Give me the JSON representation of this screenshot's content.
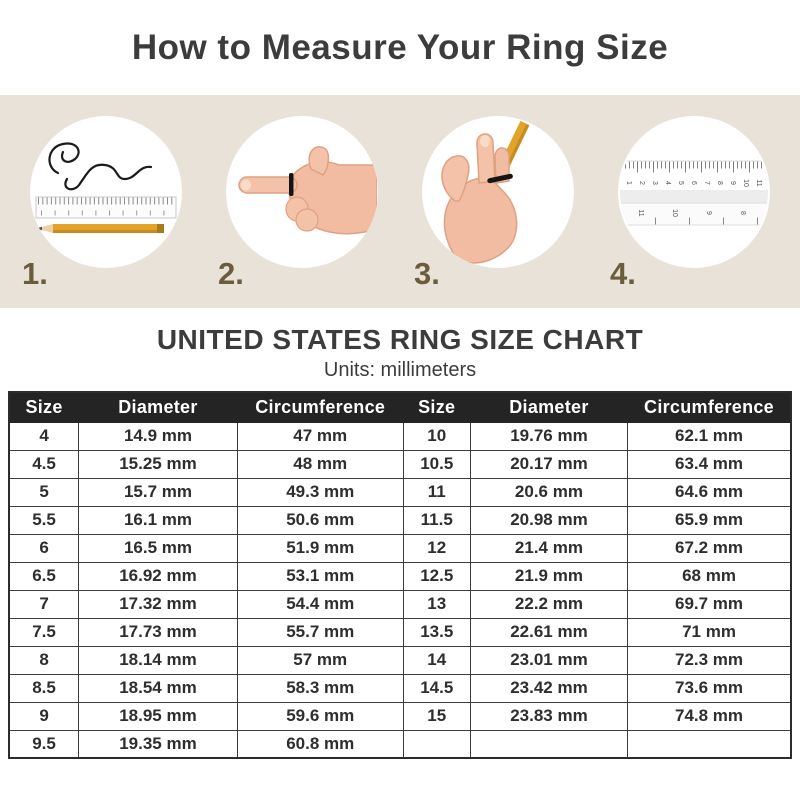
{
  "title": "How to Measure Your Ring Size",
  "steps": {
    "banner_bg": "#e9e2d9",
    "number_color": "#6b5c3e",
    "items": [
      {
        "number": "1.",
        "icon": "string-ruler-pencil"
      },
      {
        "number": "2.",
        "icon": "hand-pointing-with-string-on-finger"
      },
      {
        "number": "3.",
        "icon": "hand-marking-string-with-pencil"
      },
      {
        "number": "4.",
        "icon": "ruler-closeup",
        "top_scale": [
          "1",
          "2",
          "3",
          "4",
          "5",
          "6",
          "7",
          "8",
          "9",
          "10",
          "11"
        ],
        "bottom_scale": [
          "11",
          "10",
          "9",
          "8"
        ]
      }
    ]
  },
  "chart": {
    "heading": "UNITED STATES RING SIZE CHART",
    "subheading": "Units: millimeters",
    "header_bg": "#242424",
    "header_text_color": "#ffffff",
    "columns": [
      "Size",
      "Diameter",
      "Circumference",
      "Size",
      "Diameter",
      "Circumference"
    ],
    "rows": [
      [
        "4",
        "14.9 mm",
        "47 mm",
        "10",
        "19.76 mm",
        "62.1 mm"
      ],
      [
        "4.5",
        "15.25 mm",
        "48 mm",
        "10.5",
        "20.17 mm",
        "63.4 mm"
      ],
      [
        "5",
        "15.7 mm",
        "49.3 mm",
        "11",
        "20.6 mm",
        "64.6 mm"
      ],
      [
        "5.5",
        "16.1 mm",
        "50.6 mm",
        "11.5",
        "20.98 mm",
        "65.9 mm"
      ],
      [
        "6",
        "16.5 mm",
        "51.9 mm",
        "12",
        "21.4 mm",
        "67.2 mm"
      ],
      [
        "6.5",
        "16.92 mm",
        "53.1 mm",
        "12.5",
        "21.9 mm",
        "68 mm"
      ],
      [
        "7",
        "17.32 mm",
        "54.4 mm",
        "13",
        "22.2 mm",
        "69.7 mm"
      ],
      [
        "7.5",
        "17.73 mm",
        "55.7 mm",
        "13.5",
        "22.61 mm",
        "71 mm"
      ],
      [
        "8",
        "18.14 mm",
        "57 mm",
        "14",
        "23.01 mm",
        "72.3 mm"
      ],
      [
        "8.5",
        "18.54 mm",
        "58.3 mm",
        "14.5",
        "23.42 mm",
        "73.6 mm"
      ],
      [
        "9",
        "18.95 mm",
        "59.6 mm",
        "15",
        "23.83 mm",
        "74.8 mm"
      ],
      [
        "9.5",
        "19.35 mm",
        "60.8 mm",
        "",
        "",
        ""
      ]
    ]
  }
}
